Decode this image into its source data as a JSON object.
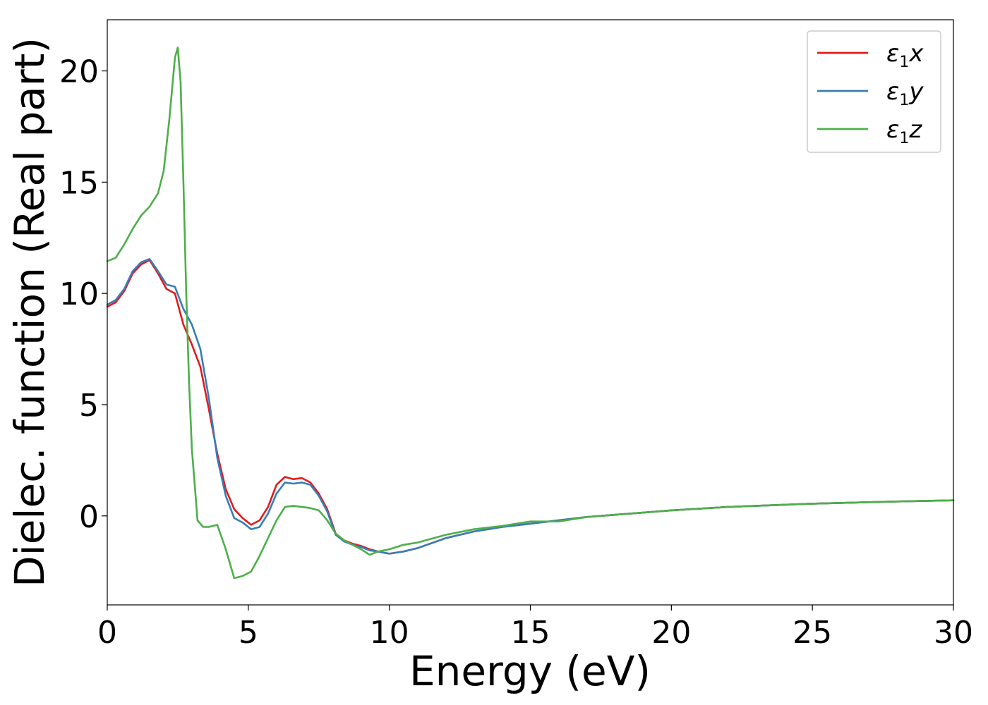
{
  "chart_data": {
    "type": "line",
    "title": "",
    "xlabel": "Energy (eV)",
    "ylabel": "Dielec. function (Real part)",
    "xlim": [
      0,
      30
    ],
    "ylim": [
      -4,
      22.3
    ],
    "x_ticks": [
      0,
      5,
      10,
      15,
      20,
      25,
      30
    ],
    "x_tick_labels": [
      "0",
      "5",
      "10",
      "15",
      "20",
      "25",
      "30"
    ],
    "y_ticks": [
      0,
      5,
      10,
      15,
      20
    ],
    "y_tick_labels": [
      "0",
      "5",
      "10",
      "15",
      "20"
    ],
    "grid": false,
    "legend_position": "top-right",
    "series": [
      {
        "name": "ε1x",
        "legend": {
          "symbol": "ε",
          "sub": "1",
          "suffix": "x"
        },
        "color": "#e41a1c",
        "x": [
          0,
          0.3,
          0.6,
          0.9,
          1.2,
          1.5,
          1.8,
          2.1,
          2.4,
          2.7,
          3.0,
          3.3,
          3.6,
          3.9,
          4.2,
          4.5,
          4.8,
          5.1,
          5.4,
          5.7,
          6.0,
          6.3,
          6.6,
          6.9,
          7.2,
          7.5,
          7.8,
          8.1,
          8.4,
          8.7,
          9.0,
          9.3,
          9.6,
          10.0,
          10.5,
          11.0,
          12.0,
          13.0,
          14.0,
          15.0,
          16.0,
          17.0,
          18.0,
          20.0,
          22.0,
          25.0,
          28.0,
          30.0
        ],
        "y": [
          9.4,
          9.6,
          10.1,
          10.9,
          11.3,
          11.5,
          10.9,
          10.2,
          10.0,
          8.6,
          7.7,
          6.7,
          4.8,
          2.8,
          1.2,
          0.3,
          -0.1,
          -0.4,
          -0.2,
          0.4,
          1.4,
          1.75,
          1.65,
          1.7,
          1.5,
          1.0,
          0.3,
          -0.8,
          -1.1,
          -1.25,
          -1.35,
          -1.5,
          -1.6,
          -1.7,
          -1.6,
          -1.45,
          -1.0,
          -0.7,
          -0.5,
          -0.35,
          -0.2,
          -0.05,
          0.05,
          0.25,
          0.4,
          0.55,
          0.65,
          0.7
        ]
      },
      {
        "name": "ε1y",
        "legend": {
          "symbol": "ε",
          "sub": "1",
          "suffix": "y"
        },
        "color": "#377eb8",
        "x": [
          0,
          0.3,
          0.6,
          0.9,
          1.2,
          1.5,
          1.8,
          2.1,
          2.4,
          2.7,
          3.0,
          3.3,
          3.6,
          3.9,
          4.2,
          4.5,
          4.8,
          5.1,
          5.4,
          5.7,
          6.0,
          6.3,
          6.6,
          6.9,
          7.2,
          7.5,
          7.8,
          8.1,
          8.4,
          8.7,
          9.0,
          9.3,
          9.6,
          10.0,
          10.5,
          11.0,
          12.0,
          13.0,
          14.0,
          15.0,
          16.0,
          17.0,
          18.0,
          20.0,
          22.0,
          25.0,
          28.0,
          30.0
        ],
        "y": [
          9.5,
          9.7,
          10.2,
          11.0,
          11.4,
          11.55,
          11.0,
          10.4,
          10.3,
          9.3,
          8.6,
          7.5,
          5.3,
          2.6,
          0.9,
          -0.1,
          -0.3,
          -0.6,
          -0.5,
          0.1,
          1.0,
          1.5,
          1.45,
          1.5,
          1.4,
          0.9,
          0.2,
          -0.85,
          -1.15,
          -1.3,
          -1.4,
          -1.55,
          -1.6,
          -1.7,
          -1.6,
          -1.45,
          -1.0,
          -0.7,
          -0.5,
          -0.35,
          -0.2,
          -0.05,
          0.05,
          0.25,
          0.4,
          0.55,
          0.65,
          0.7
        ]
      },
      {
        "name": "ε1z",
        "legend": {
          "symbol": "ε",
          "sub": "1",
          "suffix": "z"
        },
        "color": "#4daf4a",
        "x": [
          0,
          0.3,
          0.6,
          0.9,
          1.2,
          1.5,
          1.8,
          2.0,
          2.2,
          2.4,
          2.5,
          2.6,
          2.7,
          2.8,
          2.9,
          3.0,
          3.2,
          3.4,
          3.6,
          3.9,
          4.2,
          4.5,
          4.8,
          5.1,
          5.4,
          5.7,
          6.0,
          6.3,
          6.6,
          6.9,
          7.2,
          7.5,
          7.8,
          8.1,
          8.4,
          8.7,
          9.0,
          9.3,
          9.6,
          10.0,
          10.5,
          11.0,
          12.0,
          13.0,
          14.0,
          15.0,
          16.0,
          17.0,
          18.0,
          20.0,
          22.0,
          25.0,
          28.0,
          30.0
        ],
        "y": [
          11.45,
          11.6,
          12.2,
          12.9,
          13.5,
          13.9,
          14.5,
          15.5,
          17.8,
          20.6,
          21.05,
          19.5,
          15.0,
          10.0,
          6.0,
          3.0,
          -0.2,
          -0.5,
          -0.5,
          -0.4,
          -1.5,
          -2.8,
          -2.7,
          -2.5,
          -1.8,
          -1.0,
          -0.2,
          0.4,
          0.45,
          0.4,
          0.35,
          0.25,
          -0.2,
          -0.8,
          -1.1,
          -1.3,
          -1.5,
          -1.75,
          -1.6,
          -1.5,
          -1.3,
          -1.2,
          -0.85,
          -0.6,
          -0.45,
          -0.25,
          -0.25,
          -0.05,
          0.05,
          0.25,
          0.4,
          0.55,
          0.65,
          0.7
        ]
      }
    ]
  }
}
